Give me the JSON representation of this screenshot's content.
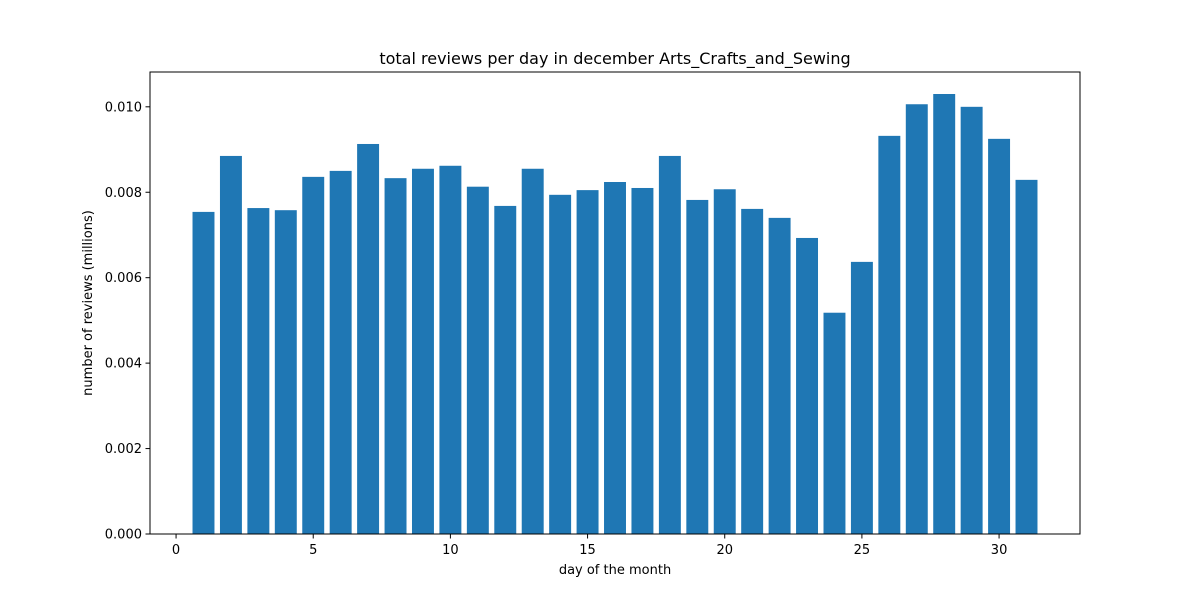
{
  "chart_data": {
    "type": "bar",
    "title": "total reviews per day in december Arts_Crafts_and_Sewing",
    "xlabel": "day of the month",
    "ylabel": "number of reviews (millions)",
    "x": [
      1,
      2,
      3,
      4,
      5,
      6,
      7,
      8,
      9,
      10,
      11,
      12,
      13,
      14,
      15,
      16,
      17,
      18,
      19,
      20,
      21,
      22,
      23,
      24,
      25,
      26,
      27,
      28,
      29,
      30,
      31
    ],
    "values": [
      0.00754,
      0.00885,
      0.00763,
      0.00758,
      0.00836,
      0.0085,
      0.00913,
      0.00833,
      0.00855,
      0.00862,
      0.00813,
      0.00768,
      0.00855,
      0.00794,
      0.00805,
      0.00824,
      0.0081,
      0.00885,
      0.00782,
      0.00807,
      0.00761,
      0.0074,
      0.00693,
      0.00518,
      0.00637,
      0.00932,
      0.01006,
      0.0103,
      0.01,
      0.00925,
      0.00829
    ],
    "xlim": [
      -0.95,
      32.95
    ],
    "ylim": [
      0,
      0.010815
    ],
    "xticks": [
      0,
      5,
      10,
      15,
      20,
      25,
      30
    ],
    "xtick_labels": [
      "0",
      "5",
      "10",
      "15",
      "20",
      "25",
      "30"
    ],
    "yticks": [
      0,
      0.002,
      0.004,
      0.006,
      0.008,
      0.01
    ],
    "ytick_labels": [
      "0.000",
      "0.002",
      "0.004",
      "0.006",
      "0.008",
      "0.010"
    ],
    "bar_color": "#1f77b4",
    "grid": false,
    "legend": "none"
  }
}
